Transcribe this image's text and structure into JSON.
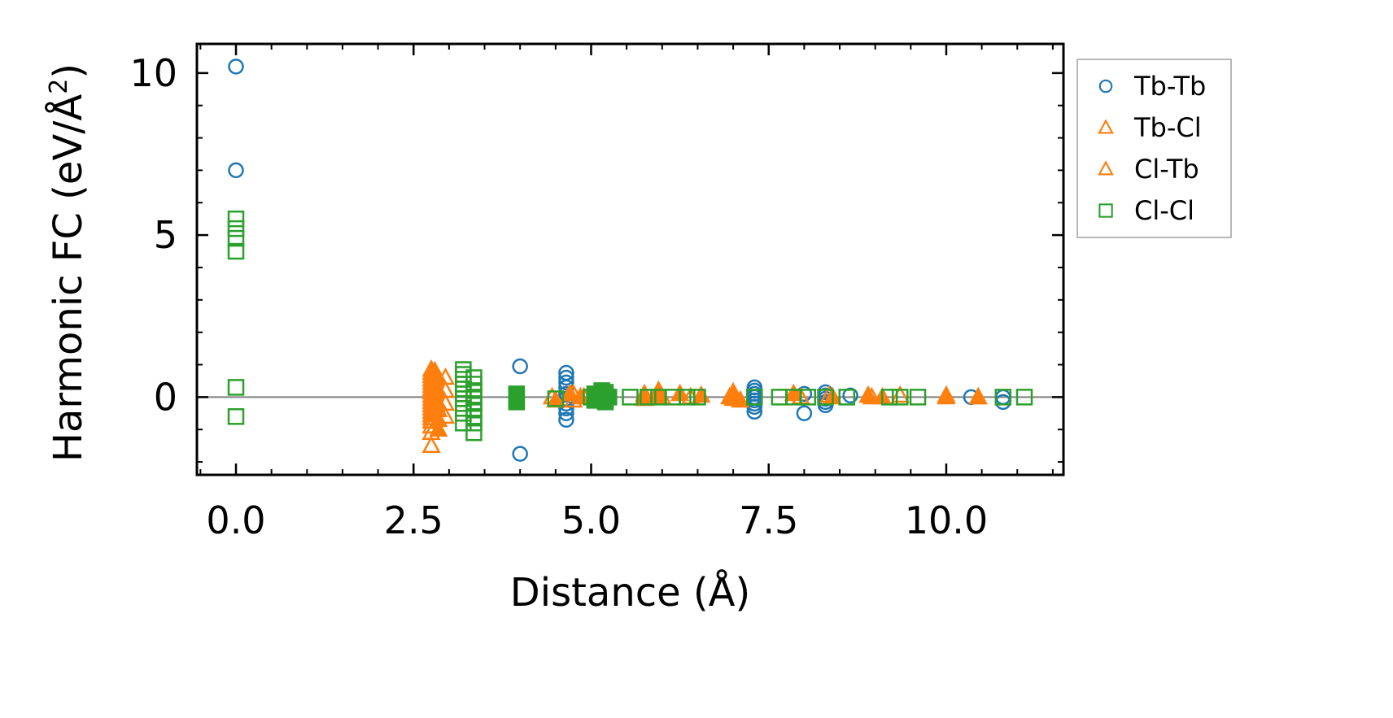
{
  "chart_data": {
    "type": "scatter",
    "title": "",
    "xlabel": "Distance (Å)",
    "ylabel": "Harmonic FC (eV/Å",
    "ylabel_superscript": "2",
    "ylabel_close": ")",
    "xlim": [
      -0.55,
      11.65
    ],
    "ylim": [
      -2.4,
      10.9
    ],
    "xticks": [
      0.0,
      2.5,
      5.0,
      7.5,
      10.0
    ],
    "xtick_labels": [
      "0.0",
      "2.5",
      "5.0",
      "7.5",
      "10.0"
    ],
    "yticks": [
      0,
      5,
      10
    ],
    "ytick_labels": [
      "0",
      "5",
      "10"
    ],
    "reference_line_y": 0,
    "legend_position": "outside-right-top",
    "series": [
      {
        "name": "Tb-Tb",
        "marker": "circle",
        "color": "#1f77b4",
        "x": [
          0.0,
          0.0,
          4.0,
          4.0,
          4.65,
          4.65,
          4.65,
          4.65,
          4.65,
          4.65,
          4.65,
          4.65,
          4.65,
          4.65,
          7.3,
          7.3,
          7.3,
          7.3,
          7.3,
          7.3,
          7.3,
          7.3,
          8.0,
          8.0,
          8.3,
          8.3,
          8.3,
          8.3,
          8.3,
          8.65,
          10.35,
          10.8,
          10.8
        ],
        "y": [
          10.2,
          7.0,
          0.95,
          -1.75,
          0.75,
          0.6,
          0.45,
          0.3,
          0.1,
          -0.05,
          -0.2,
          -0.35,
          -0.5,
          -0.7,
          0.3,
          0.2,
          0.1,
          0.0,
          -0.1,
          -0.2,
          -0.3,
          -0.45,
          0.1,
          -0.5,
          0.15,
          0.05,
          -0.05,
          -0.15,
          -0.25,
          0.05,
          0.0,
          0.0,
          -0.15
        ]
      },
      {
        "name": "Tb-Cl",
        "marker": "triangle",
        "color": "#ff7f0e",
        "x": [
          2.75,
          2.75,
          2.75,
          2.75,
          2.75,
          2.75,
          2.75,
          2.75,
          2.75,
          2.75,
          2.75,
          2.75,
          2.75,
          2.75,
          2.75,
          2.75,
          2.75,
          2.75,
          2.75,
          2.75,
          2.95,
          2.95,
          2.95,
          2.95,
          4.45,
          4.75,
          4.75,
          4.9,
          5.75,
          6.0,
          6.4,
          7.0,
          7.0,
          7.95,
          8.35,
          8.95,
          9.35,
          10.0,
          10.45
        ],
        "y": [
          0.85,
          0.75,
          0.65,
          0.55,
          0.45,
          0.35,
          0.25,
          0.15,
          0.05,
          -0.05,
          -0.15,
          -0.25,
          -0.35,
          -0.45,
          -0.55,
          -0.65,
          -0.75,
          -0.9,
          -1.1,
          -1.5,
          0.6,
          0.2,
          -0.2,
          -0.6,
          0.0,
          0.1,
          -0.1,
          0.0,
          0.05,
          0.0,
          0.0,
          0.05,
          -0.05,
          0.0,
          0.05,
          0.0,
          0.05,
          0.0,
          0.0
        ]
      },
      {
        "name": "Cl-Tb",
        "marker": "triangle-filled",
        "color": "#ff7f0e",
        "x": [
          2.8,
          2.8,
          2.8,
          2.8,
          2.8,
          2.8,
          2.8,
          2.85,
          2.85,
          2.85,
          2.85,
          2.85,
          2.85,
          4.5,
          4.7,
          4.85,
          5.75,
          5.75,
          5.95,
          5.95,
          6.25,
          6.55,
          6.95,
          7.0,
          7.1,
          7.85,
          8.4,
          8.9,
          9.1,
          10.0,
          10.45
        ],
        "y": [
          0.8,
          0.5,
          0.3,
          0.1,
          -0.1,
          -0.3,
          -0.5,
          0.6,
          0.2,
          -0.2,
          -0.4,
          -0.7,
          -1.0,
          -0.1,
          0.1,
          0.0,
          0.1,
          -0.05,
          0.2,
          0.0,
          0.1,
          0.05,
          0.0,
          0.15,
          -0.1,
          0.1,
          0.0,
          0.05,
          0.0,
          0.05,
          0.0
        ]
      },
      {
        "name": "Cl-Cl",
        "marker": "square",
        "color": "#2ca02c",
        "x": [
          0.0,
          0.0,
          0.0,
          0.0,
          0.0,
          0.0,
          3.2,
          3.2,
          3.2,
          3.2,
          3.2,
          3.2,
          3.2,
          3.2,
          3.2,
          3.2,
          3.2,
          3.35,
          3.35,
          3.35,
          3.35,
          3.35,
          3.35,
          3.35,
          3.35,
          3.35,
          3.95,
          3.95,
          4.5,
          5.0,
          5.2,
          5.2,
          5.55,
          5.8,
          5.95,
          6.15,
          6.35,
          6.5,
          7.3,
          7.65,
          7.85,
          8.05,
          8.3,
          8.6,
          9.2,
          9.35,
          9.6,
          10.8,
          11.1
        ],
        "y": [
          5.5,
          5.2,
          4.9,
          4.5,
          0.3,
          -0.6,
          0.85,
          0.7,
          0.55,
          0.4,
          0.25,
          0.1,
          -0.05,
          -0.2,
          -0.35,
          -0.5,
          -0.8,
          0.6,
          0.4,
          0.2,
          0.0,
          -0.2,
          -0.4,
          -0.6,
          -0.8,
          -1.1,
          0.1,
          -0.1,
          -0.05,
          0.0,
          0.15,
          -0.15,
          0.0,
          0.0,
          0.0,
          0.0,
          0.0,
          0.0,
          0.0,
          0.0,
          0.0,
          0.0,
          0.0,
          0.0,
          0.0,
          0.0,
          0.0,
          0.0,
          0.0
        ]
      },
      {
        "name": "Cl-Cl (filled)",
        "marker": "square-filled",
        "color": "#2ca02c",
        "legend": false,
        "x": [
          3.95,
          3.95,
          5.05,
          5.05,
          5.1,
          5.15,
          5.2,
          5.2,
          5.25
        ],
        "y": [
          0.05,
          -0.15,
          0.1,
          -0.1,
          0.0,
          0.2,
          0.1,
          -0.1,
          0.0
        ]
      }
    ],
    "legend": [
      {
        "label": "Tb-Tb",
        "marker": "circle",
        "color": "#1f77b4"
      },
      {
        "label": "Tb-Cl",
        "marker": "triangle",
        "color": "#ff7f0e"
      },
      {
        "label": "Cl-Tb",
        "marker": "triangle",
        "color": "#ff7f0e"
      },
      {
        "label": "Cl-Cl",
        "marker": "square",
        "color": "#2ca02c"
      }
    ]
  }
}
